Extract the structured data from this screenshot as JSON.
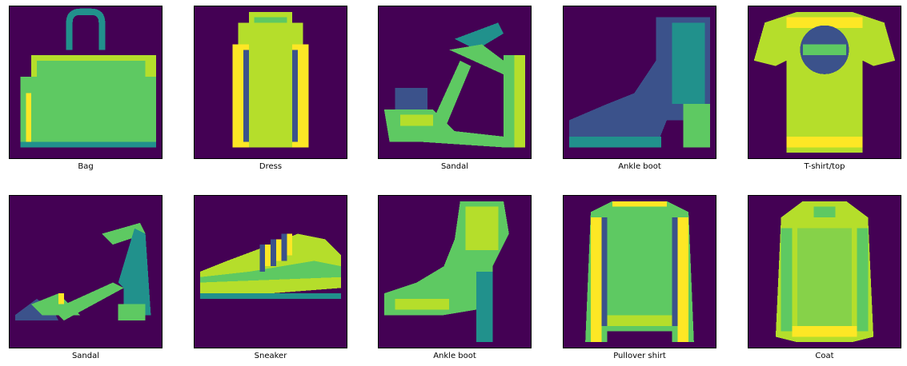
{
  "palette": {
    "bg": "#440154",
    "dark_teal": "#3b528b",
    "teal": "#21918c",
    "green": "#5ec962",
    "lime": "#b5de2b",
    "yellow": "#fde725"
  },
  "images": [
    {
      "label": "Bag",
      "icon": "bag-icon"
    },
    {
      "label": "Dress",
      "icon": "dress-icon"
    },
    {
      "label": "Sandal",
      "icon": "sandal-icon"
    },
    {
      "label": "Ankle boot",
      "icon": "ankle-boot-icon"
    },
    {
      "label": "T-shirt/top",
      "icon": "tshirt-icon"
    },
    {
      "label": "Sandal",
      "icon": "sandal-icon"
    },
    {
      "label": "Sneaker",
      "icon": "sneaker-icon"
    },
    {
      "label": "Ankle boot",
      "icon": "ankle-boot-icon"
    },
    {
      "label": "Pullover shirt",
      "icon": "pullover-icon"
    },
    {
      "label": "Coat",
      "icon": "coat-icon"
    }
  ]
}
